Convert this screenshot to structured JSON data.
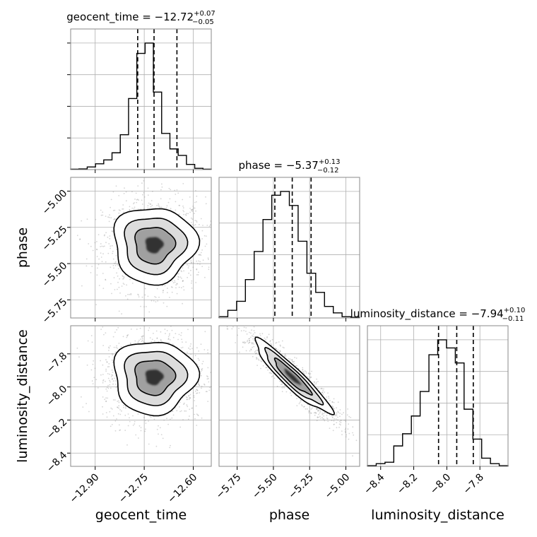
{
  "chart_data": {
    "type": "corner",
    "parameters": [
      "geocent_time",
      "phase",
      "luminosity_distance"
    ],
    "titles": {
      "geocent_time": {
        "prefix": "geocent_time = ",
        "median": "−12.72",
        "plus": "+0.07",
        "minus": "−0.05"
      },
      "phase": {
        "prefix": "phase = ",
        "median": "−5.37",
        "plus": "+0.13",
        "minus": "−0.12"
      },
      "luminosity_distance": {
        "prefix": "luminosity_distance = ",
        "median": "−7.94",
        "plus": "+0.10",
        "minus": "−0.11"
      }
    },
    "axis_labels": {
      "x": [
        "geocent_time",
        "phase",
        "luminosity_distance"
      ],
      "y": [
        "phase",
        "luminosity_distance"
      ]
    },
    "ranges": {
      "geocent_time": [
        -12.975,
        -12.545
      ],
      "phase": [
        -5.875,
        -4.905
      ],
      "luminosity_distance": [
        -8.48,
        -7.63
      ]
    },
    "ticks": {
      "geocent_time": {
        "values": [
          -12.9,
          -12.75,
          -12.6
        ],
        "labels": [
          "−12.90",
          "−12.75",
          "−12.60"
        ]
      },
      "phase": {
        "values": [
          -5.75,
          -5.5,
          -5.25,
          -5.0
        ],
        "labels": [
          "−5.75",
          "−5.50",
          "−5.25",
          "−5.00"
        ]
      },
      "luminosity_distance": {
        "values": [
          -8.4,
          -8.2,
          -8.0,
          -7.8
        ],
        "labels": [
          "−8.4",
          "−8.2",
          "−8.0",
          "−7.8"
        ]
      }
    },
    "quantiles": {
      "geocent_time": [
        -12.77,
        -12.72,
        -12.65
      ],
      "phase": [
        -5.49,
        -5.37,
        -5.24
      ],
      "luminosity_distance": [
        -8.05,
        -7.94,
        -7.84
      ]
    },
    "histograms": {
      "geocent_time": [
        0.003,
        0.005,
        0.02,
        0.045,
        0.075,
        0.13,
        0.27,
        0.55,
        0.9,
        0.98,
        0.6,
        0.28,
        0.16,
        0.11,
        0.04,
        0.01,
        0.003
      ],
      "phase": [
        0.01,
        0.06,
        0.13,
        0.3,
        0.52,
        0.77,
        0.96,
        0.99,
        0.88,
        0.6,
        0.35,
        0.2,
        0.09,
        0.04,
        0.01,
        0.005
      ],
      "luminosity_distance": [
        0.005,
        0.02,
        0.03,
        0.15,
        0.24,
        0.37,
        0.55,
        0.82,
        0.93,
        0.87,
        0.76,
        0.42,
        0.2,
        0.06,
        0.02,
        0.005
      ]
    },
    "correlations": {
      "geocent_time|phase": 0.0,
      "geocent_time|luminosity_distance": 0.0,
      "phase|luminosity_distance": -0.93
    },
    "grid": true
  }
}
